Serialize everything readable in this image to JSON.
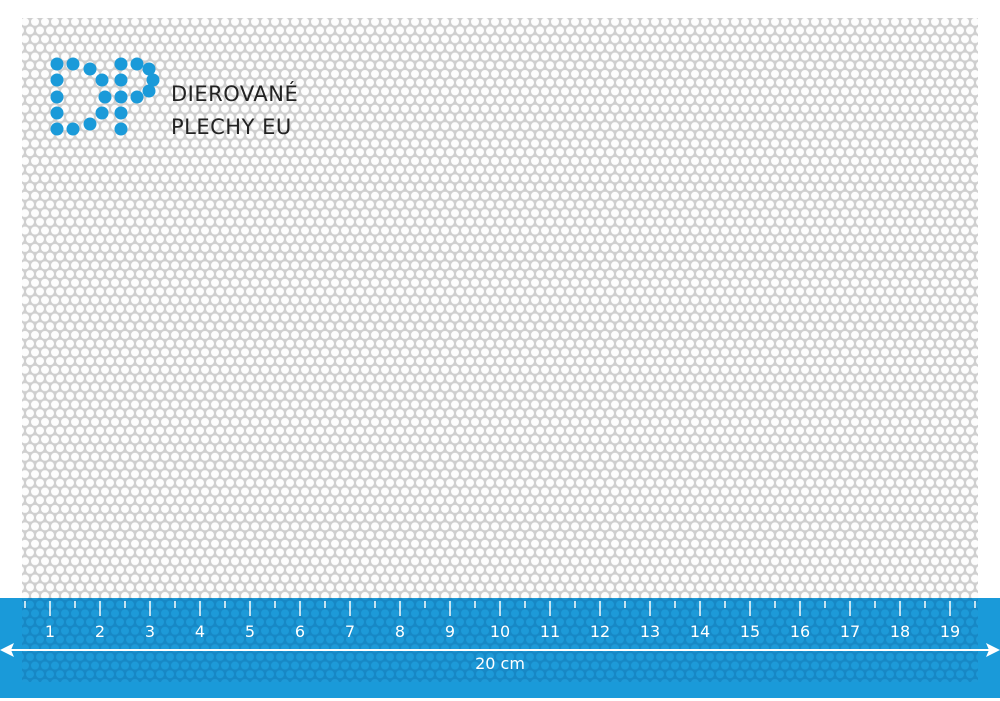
{
  "brand": {
    "line1": "DIEROVANÉ",
    "line2": "PLECHY EU",
    "logo_letters": "DP",
    "logo_color": "#1a9ad9"
  },
  "ruler": {
    "labels": [
      "1",
      "2",
      "3",
      "4",
      "5",
      "6",
      "7",
      "8",
      "9",
      "10",
      "11",
      "12",
      "13",
      "14",
      "15",
      "16",
      "17",
      "18",
      "19"
    ],
    "length_label": "20 cm",
    "color": "#1a9ad9"
  }
}
